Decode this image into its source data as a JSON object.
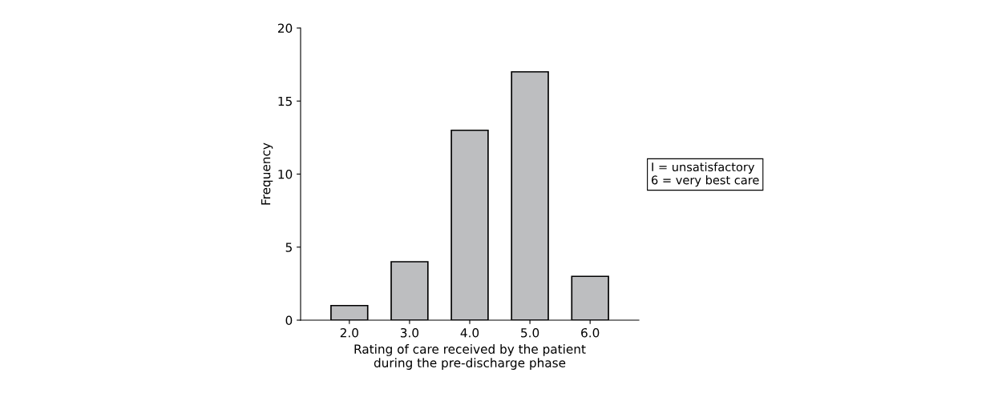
{
  "chart_data": {
    "type": "bar",
    "categories": [
      "2.0",
      "3.0",
      "4.0",
      "5.0",
      "6.0"
    ],
    "values": [
      1,
      4,
      13,
      17,
      3
    ],
    "color": "#bdbec0",
    "xlabel": "Rating of care received by the patient\nduring the pre-discharge phase",
    "ylabel": "Frequency",
    "ylim": [
      0,
      20
    ],
    "yticks": [
      0,
      5,
      10,
      15,
      20
    ],
    "grid": false,
    "annotations": [
      "I = unsatisfactory\n6 = very best care"
    ]
  }
}
